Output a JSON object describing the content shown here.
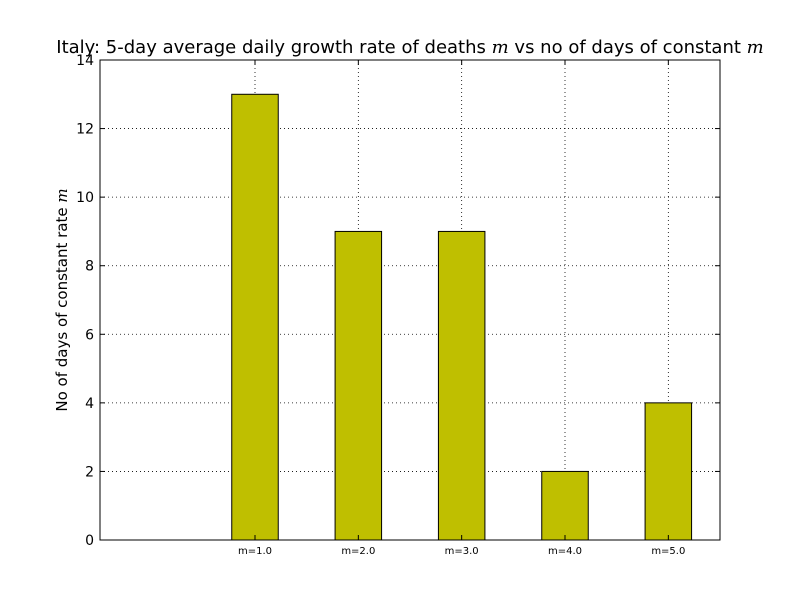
{
  "chart_data": {
    "type": "bar",
    "title": {
      "prefix": "Italy: 5-day average daily growth rate of deaths ",
      "var1": "m",
      "middle": " vs no of days of constant ",
      "var2": "m"
    },
    "ylabel": {
      "prefix": "No of days of constant rate ",
      "var": "m"
    },
    "xlabel": "",
    "categories": [
      "m=1.0",
      "m=2.0",
      "m=3.0",
      "m=4.0",
      "m=5.0"
    ],
    "values": [
      13,
      9,
      9,
      2,
      4
    ],
    "ylim": [
      0,
      14
    ],
    "yticks": [
      "0",
      "2",
      "4",
      "6",
      "8",
      "10",
      "12",
      "14"
    ],
    "grid": true,
    "bar_color": "#bfbf00",
    "edge_color": "#000000"
  }
}
